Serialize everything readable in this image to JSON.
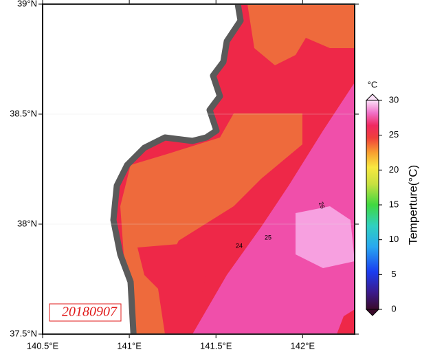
{
  "map": {
    "xlim": [
      140.5,
      142.3
    ],
    "ylim": [
      37.5,
      39
    ],
    "xticks": [
      {
        "value": 140.5,
        "label": "140.5°E"
      },
      {
        "value": 141,
        "label": "141°E"
      },
      {
        "value": 141.5,
        "label": "141.5°E"
      },
      {
        "value": 142,
        "label": "142°E"
      }
    ],
    "yticks": [
      {
        "value": 37.5,
        "label": "37.5°N"
      },
      {
        "value": 38,
        "label": "38°N"
      },
      {
        "value": 38.5,
        "label": "38.5°N"
      },
      {
        "value": 39,
        "label": "39°N"
      }
    ]
  },
  "date_label": "20180907",
  "contour_labels": [
    "24",
    "25",
    "26"
  ],
  "colorbar": {
    "unit": "°C",
    "title": "Temperture(°C)",
    "lim": [
      0,
      30
    ],
    "ticks": [
      0,
      5,
      10,
      15,
      20,
      25,
      30
    ]
  }
}
